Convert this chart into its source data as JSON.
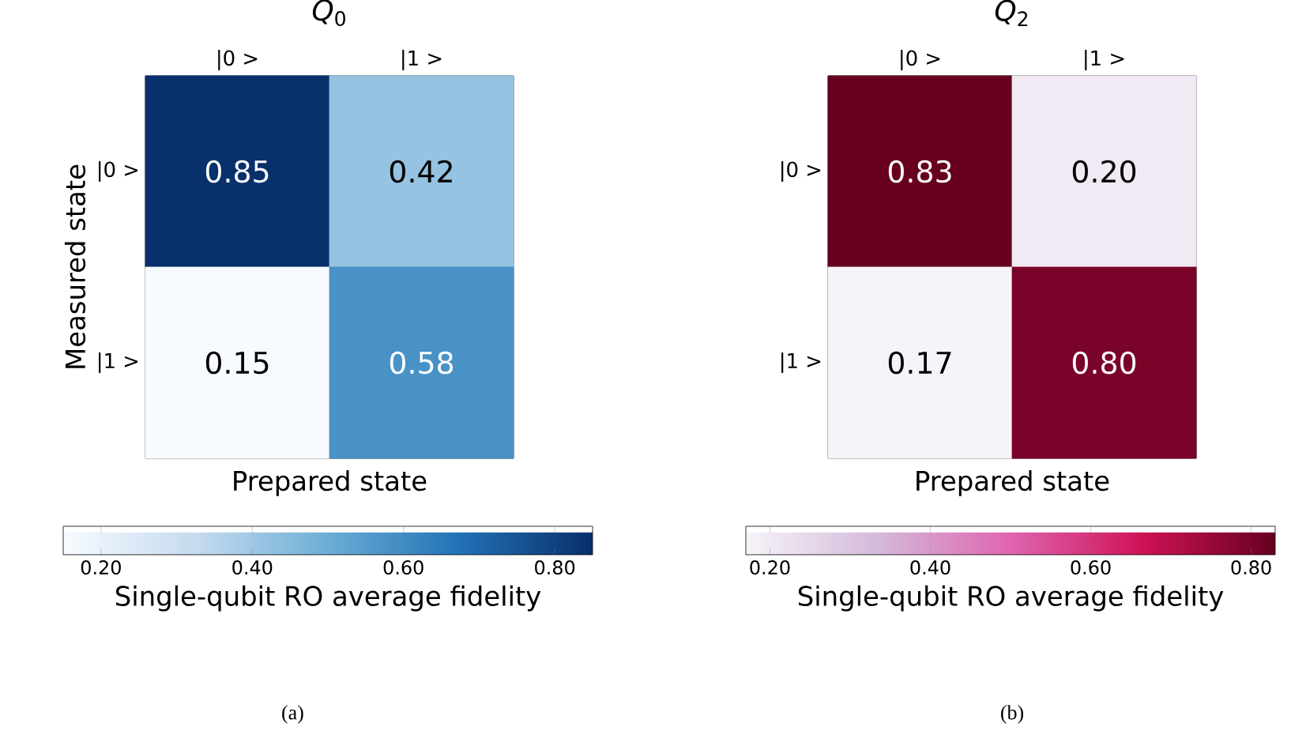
{
  "chart_data": [
    {
      "type": "heatmap",
      "title": "*Q*$_{0}$",
      "xlabel": "Prepared state",
      "ylabel": "Measured state",
      "categories": [
        "|0 >",
        "|1 >"
      ],
      "y_categories": [
        "|0 >",
        "|1 >"
      ],
      "cells": [
        [
          0.85,
          0.42
        ],
        [
          0.15,
          0.58
        ]
      ],
      "cell_labels": [
        [
          "0.85",
          "0.42"
        ],
        [
          "0.15",
          "0.58"
        ]
      ],
      "data_labels": true,
      "clim": [
        0.15,
        0.85
      ],
      "cticks": [
        {
          "value": 0.2,
          "label": "0.20"
        },
        {
          "value": 0.4,
          "label": "0.40"
        },
        {
          "value": 0.6,
          "label": "0.60"
        },
        {
          "value": 0.8,
          "label": "0.80"
        }
      ],
      "clabel": "Single-qubit RO average fidelity",
      "annotations": [
        "(a)"
      ]
    },
    {
      "type": "heatmap",
      "title": "*Q*$_{2}$",
      "xlabel": "Prepared state",
      "categories": [
        "|0 >",
        "|1 >"
      ],
      "y_categories": [
        "|0 >",
        "|1 >"
      ],
      "cells": [
        [
          0.83,
          0.2
        ],
        [
          0.17,
          0.8
        ]
      ],
      "cell_labels": [
        [
          "0.83",
          "0.20"
        ],
        [
          "0.17",
          "0.80"
        ]
      ],
      "data_labels": true,
      "clim": [
        0.17,
        0.83
      ],
      "cticks": [
        {
          "value": 0.2,
          "label": "0.20"
        },
        {
          "value": 0.4,
          "label": "0.40"
        },
        {
          "value": 0.6,
          "label": "0.60"
        },
        {
          "value": 0.8,
          "label": "0.80"
        }
      ],
      "clabel": "Single-qubit RO average fidelity",
      "annotations": [
        "(b)"
      ]
    }
  ]
}
